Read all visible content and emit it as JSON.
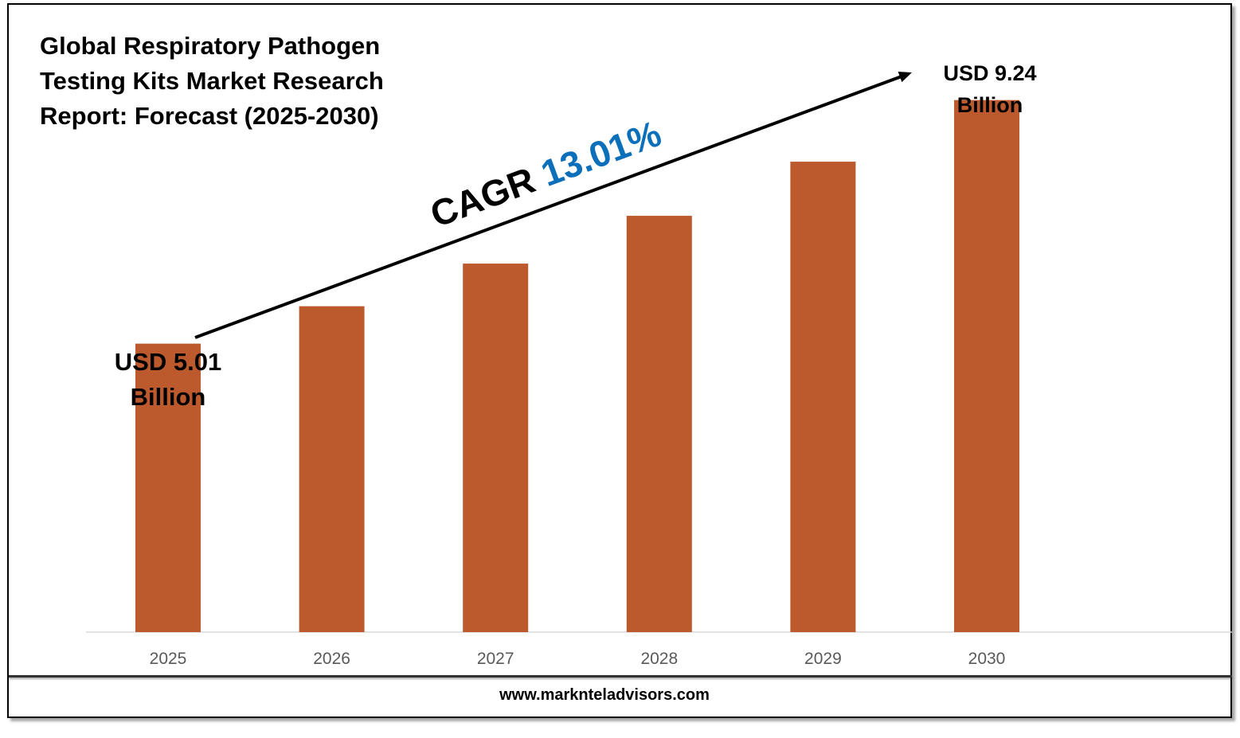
{
  "chart_data": {
    "type": "bar",
    "title": "Global Respiratory Pathogen Testing Kits Market Research Report: Forecast (2025-2030)",
    "categories": [
      "2025",
      "2026",
      "2027",
      "2028",
      "2029",
      "2030"
    ],
    "values": [
      5.01,
      5.66,
      6.4,
      7.23,
      8.17,
      9.24
    ],
    "ylim": [
      0,
      9.5
    ],
    "bar_color": "#BC5A2D",
    "start_label": "USD 5.01\nBillion",
    "end_label": "USD 9.24\nBillion",
    "cagr_prefix": "CAGR",
    "cagr_value": "13.01%",
    "cagr_color": "#0B6FBA",
    "grid": false,
    "legend": "none"
  },
  "footer": {
    "website": "www.marknteladvisors.com"
  }
}
